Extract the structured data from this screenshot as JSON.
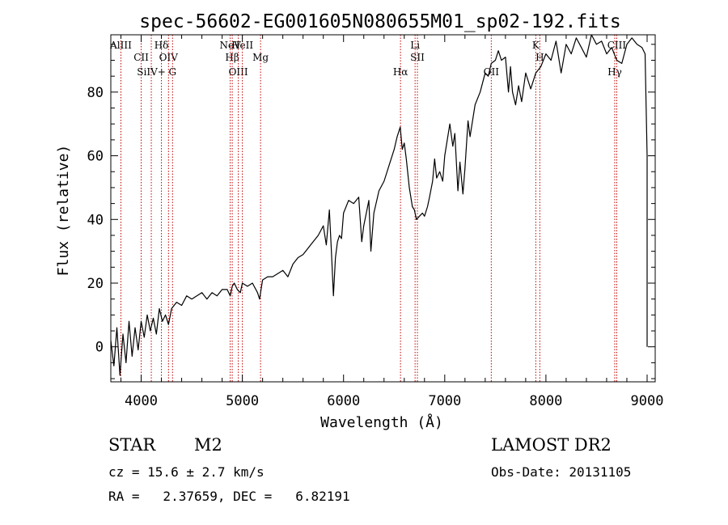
{
  "chart_data": {
    "type": "line",
    "title": "spec-56602-EG001605N080655M01_sp02-192.fits",
    "xlabel": "Wavelength (Å)",
    "ylabel": "Flux (relative)",
    "xlim": [
      3700,
      9080
    ],
    "ylim": [
      -11,
      98
    ],
    "xticks": [
      4000,
      5000,
      6000,
      7000,
      8000,
      9000
    ],
    "yticks": [
      0,
      20,
      40,
      60,
      80
    ],
    "grid": false,
    "series": [
      {
        "x": [
          3700,
          3730,
          3760,
          3790,
          3820,
          3850,
          3880,
          3910,
          3940,
          3970,
          4000,
          4030,
          4060,
          4090,
          4120,
          4150,
          4180,
          4210,
          4240,
          4270,
          4300,
          4350,
          4400,
          4450,
          4500,
          4550,
          4600,
          4650,
          4700,
          4750,
          4800,
          4850,
          4880,
          4900,
          4920,
          4950,
          4980,
          5000,
          5050,
          5100,
          5150,
          5170,
          5200,
          5250,
          5300,
          5350,
          5400,
          5450,
          5500,
          5550,
          5600,
          5650,
          5700,
          5750,
          5800,
          5830,
          5860,
          5880,
          5900,
          5920,
          5940,
          5960,
          5980,
          6000,
          6050,
          6100,
          6150,
          6180,
          6200,
          6250,
          6270,
          6300,
          6350,
          6400,
          6450,
          6500,
          6530,
          6560,
          6580,
          6600,
          6620,
          6650,
          6680,
          6700,
          6720,
          6750,
          6780,
          6800,
          6830,
          6850,
          6880,
          6900,
          6920,
          6950,
          6980,
          7000,
          7030,
          7050,
          7080,
          7100,
          7130,
          7150,
          7180,
          7200,
          7230,
          7250,
          7300,
          7350,
          7400,
          7430,
          7460,
          7500,
          7530,
          7560,
          7600,
          7630,
          7650,
          7670,
          7700,
          7730,
          7760,
          7800,
          7850,
          7900,
          7950,
          8000,
          8050,
          8100,
          8150,
          8200,
          8250,
          8300,
          8350,
          8400,
          8450,
          8500,
          8550,
          8600,
          8650,
          8700,
          8750,
          8800,
          8850,
          8900,
          8950,
          8980,
          9000,
          9000
        ],
        "y": [
          2,
          -6,
          6,
          -9,
          4,
          -5,
          8,
          -3,
          6,
          -1,
          8,
          3,
          10,
          5,
          9,
          4,
          12,
          8,
          10,
          7,
          12,
          14,
          13,
          16,
          15,
          16,
          17,
          15,
          17,
          16,
          18,
          18,
          16,
          19,
          20,
          18,
          17,
          20,
          19,
          20,
          17,
          15,
          21,
          22,
          22,
          23,
          24,
          22,
          26,
          28,
          29,
          31,
          33,
          35,
          38,
          32,
          43,
          30,
          16,
          28,
          33,
          35,
          34,
          42,
          46,
          45,
          47,
          33,
          38,
          46,
          30,
          42,
          49,
          52,
          57,
          62,
          66,
          69,
          62,
          64,
          59,
          50,
          44,
          43,
          40,
          41,
          42,
          41,
          44,
          47,
          52,
          59,
          53,
          55,
          52,
          60,
          66,
          70,
          63,
          67,
          49,
          58,
          48,
          56,
          71,
          66,
          76,
          80,
          86,
          85,
          89,
          90,
          93,
          90,
          91,
          80,
          88,
          80,
          76,
          82,
          77,
          86,
          81,
          86,
          88,
          92,
          90,
          96,
          86,
          95,
          92,
          97,
          94,
          91,
          98,
          95,
          96,
          92,
          94,
          90,
          89,
          95,
          97,
          95,
          94,
          92,
          60,
          0
        ]
      }
    ],
    "line_marks": [
      {
        "label": "AlIII",
        "wave": 3800
      },
      {
        "label": "CII",
        "wave": 4000
      },
      {
        "label": "SiIV+",
        "wave": 4100
      },
      {
        "label": "Hδ",
        "wave": 4200
      },
      {
        "label": "OIV",
        "wave": 4270
      },
      {
        "label": "G",
        "wave": 4310
      },
      {
        "label": "NeV",
        "wave": 4880
      },
      {
        "label": "Hβ",
        "wave": 4900
      },
      {
        "label": "OIII",
        "wave": 4960
      },
      {
        "label": "HeII",
        "wave": 5000
      },
      {
        "label": "Mg",
        "wave": 5180
      },
      {
        "label": "Hα",
        "wave": 6563
      },
      {
        "label": "Li",
        "wave": 6707
      },
      {
        "label": "SII",
        "wave": 6730
      },
      {
        "label": "OII",
        "wave": 7460
      },
      {
        "label": "K",
        "wave": 7900
      },
      {
        "label": "H",
        "wave": 7940
      },
      {
        "label": "Hγ",
        "wave": 8680
      },
      {
        "label": "CIII",
        "wave": 8700
      }
    ]
  },
  "info": {
    "class_label": "STAR",
    "subclass": "M2",
    "survey": "LAMOST DR2",
    "cz_text": "cz = 15.6 ± 2.7 km/s",
    "obs_date_text": "Obs-Date: 20131105",
    "radec_text": "RA =   2.37659, DEC =   6.82191"
  },
  "colors": {
    "line_marker": "#c00000",
    "spectrum": "#000000"
  }
}
